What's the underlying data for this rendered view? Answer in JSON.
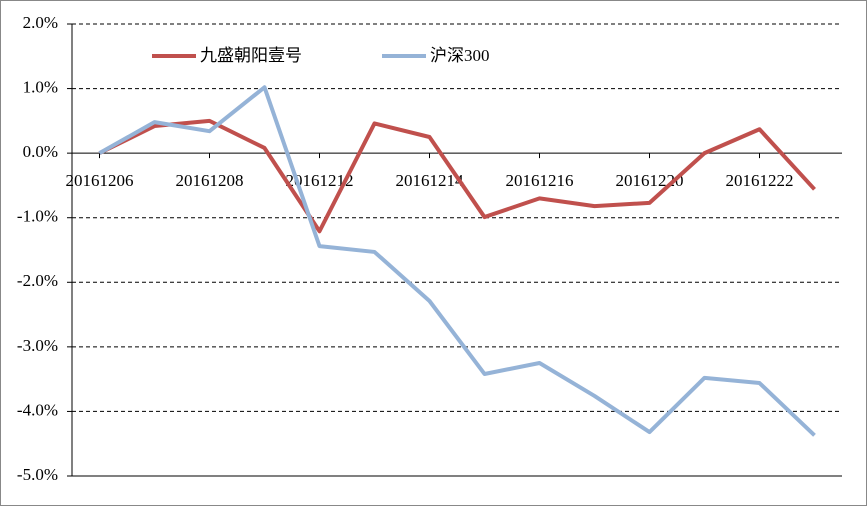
{
  "chart_data": {
    "type": "line",
    "categories": [
      "20161206",
      null,
      "20161208",
      null,
      "20161212",
      null,
      "20161214",
      null,
      "20161216",
      null,
      "20161220",
      null,
      "20161222",
      null
    ],
    "series": [
      {
        "name": "九盛朝阳壹号",
        "color": "#c0504d",
        "values": [
          0,
          0.42,
          0.5,
          0.08,
          -1.21,
          0.46,
          0.25,
          -0.99,
          -0.7,
          -0.82,
          -0.77,
          0.0,
          0.37,
          -0.56
        ]
      },
      {
        "name": "沪深300",
        "color": "#95b3d7",
        "values": [
          0,
          0.48,
          0.34,
          1.02,
          -1.44,
          -1.53,
          -2.29,
          -3.42,
          -3.25,
          -3.76,
          -4.32,
          -3.48,
          -3.56,
          -4.37
        ]
      }
    ],
    "ylim": [
      -5,
      2
    ],
    "yticks": [
      {
        "value": -5,
        "label": "-5.0%"
      },
      {
        "value": -4,
        "label": "-4.0%"
      },
      {
        "value": -3,
        "label": "-3.0%"
      },
      {
        "value": -2,
        "label": "-2.0%"
      },
      {
        "value": -1,
        "label": "-1.0%"
      },
      {
        "value": 0,
        "label": "0.0%"
      },
      {
        "value": 1,
        "label": "1.0%"
      },
      {
        "value": 2,
        "label": "2.0%"
      }
    ],
    "grid": true,
    "legend": "top"
  }
}
